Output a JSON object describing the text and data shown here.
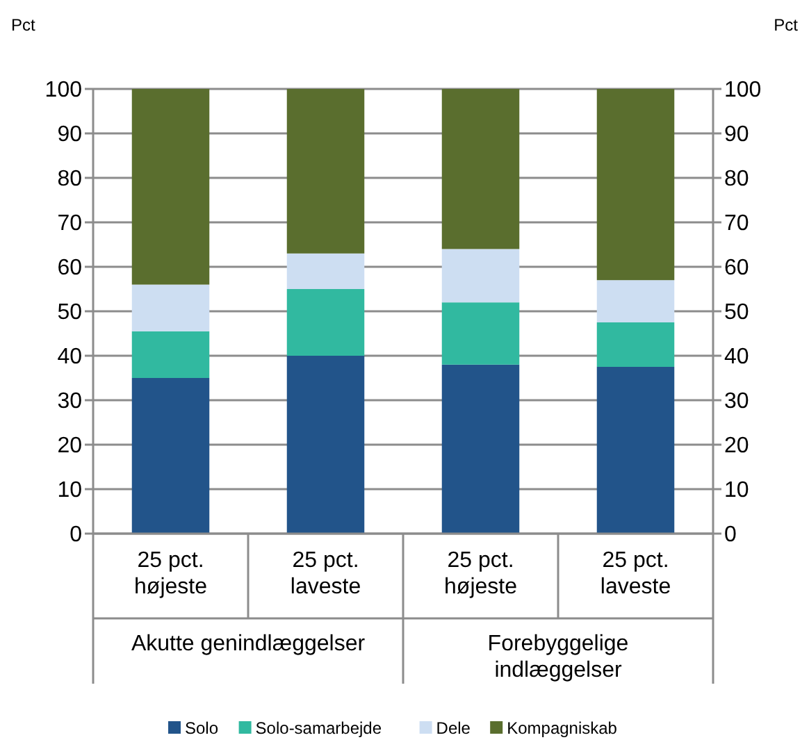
{
  "chart_data": {
    "type": "bar",
    "stacked": true,
    "categories": [
      "25 pct. højeste",
      "25 pct. laveste",
      "25 pct. højeste",
      "25 pct. laveste"
    ],
    "series": [
      {
        "name": "Solo",
        "color": "#22548a",
        "values": [
          35,
          40,
          38,
          37.5
        ]
      },
      {
        "name": "Solo-samarbejde",
        "color": "#31b9a0",
        "values": [
          10.5,
          15,
          14,
          10
        ]
      },
      {
        "name": "Dele",
        "color": "#cddef2",
        "values": [
          10.5,
          8,
          12,
          9.5
        ]
      },
      {
        "name": "Kompagniskab",
        "color": "#5a6e2e",
        "values": [
          44,
          37,
          36,
          43
        ]
      }
    ],
    "ylabel": "Pct",
    "y2label": "Pct",
    "ylim": [
      0,
      100
    ],
    "yticks": [
      0,
      10,
      20,
      30,
      40,
      50,
      60,
      70,
      80,
      90,
      100
    ],
    "y2lim": [
      0,
      100
    ],
    "y2ticks": [
      0,
      10,
      20,
      30,
      40,
      50,
      60,
      70,
      80,
      90,
      100
    ],
    "annotations": [
      "Akutte genindlæggelser",
      "Forebyggelige indlæggelser"
    ],
    "grid": "y",
    "legend": "bottom"
  }
}
